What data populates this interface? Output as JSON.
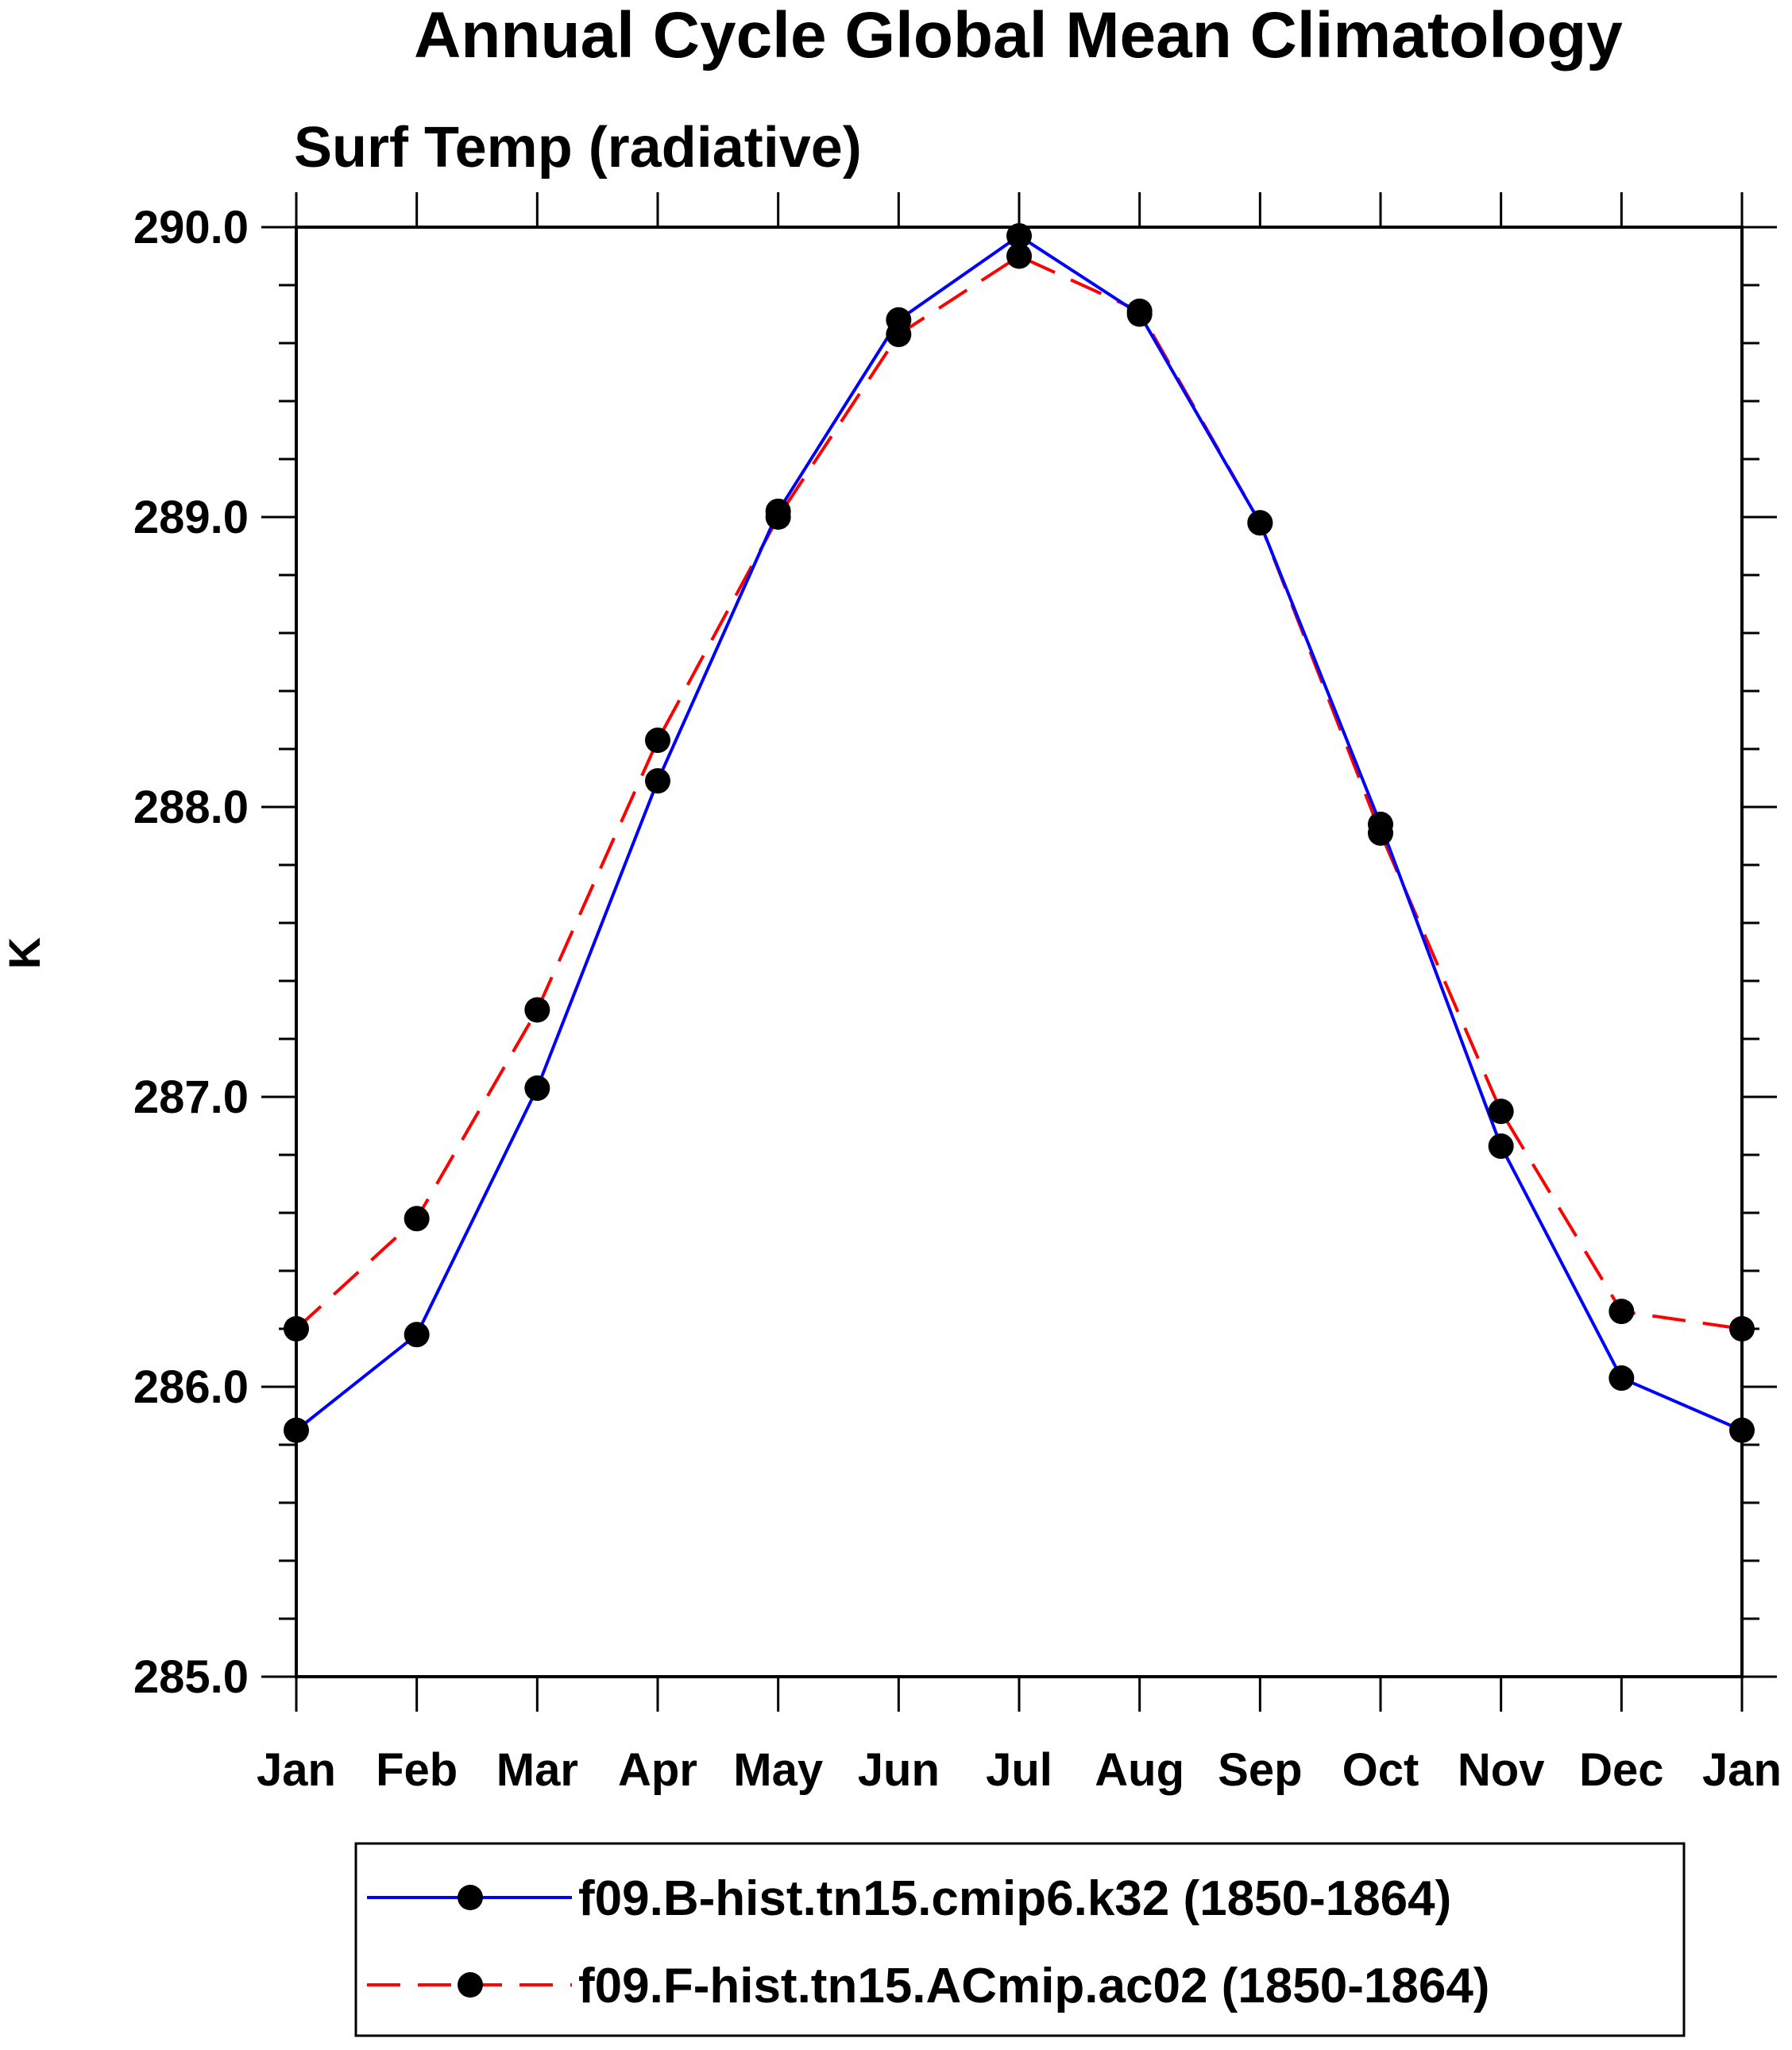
{
  "chart_data": {
    "type": "line",
    "title": "Annual Cycle Global Mean Climatology",
    "subtitle": "Surf Temp (radiative)",
    "xlabel": "",
    "ylabel": "K",
    "categories": [
      "Jan",
      "Feb",
      "Mar",
      "Apr",
      "May",
      "Jun",
      "Jul",
      "Aug",
      "Sep",
      "Oct",
      "Nov",
      "Dec",
      "Jan"
    ],
    "ylim": [
      285.0,
      290.0
    ],
    "yticks": [
      "285.0",
      "286.0",
      "287.0",
      "288.0",
      "289.0",
      "290.0"
    ],
    "series": [
      {
        "name": "f09.B-hist.tn15.cmip6.k32 (1850-1864)",
        "color": "#0000ff",
        "dash": "solid",
        "marker": "filled-circle",
        "values": [
          285.85,
          286.18,
          287.03,
          288.09,
          289.02,
          289.68,
          289.97,
          289.7,
          288.98,
          287.94,
          286.83,
          286.03,
          285.85
        ]
      },
      {
        "name": "f09.F-hist.tn15.ACmip.ac02 (1850-1864)",
        "color": "#ff0000",
        "dash": "dashed",
        "marker": "filled-circle",
        "values": [
          286.2,
          286.58,
          287.3,
          288.23,
          289.0,
          289.63,
          289.9,
          289.71,
          288.98,
          287.91,
          286.95,
          286.26,
          286.2
        ]
      }
    ],
    "legend_position": "bottom",
    "grid": false
  }
}
